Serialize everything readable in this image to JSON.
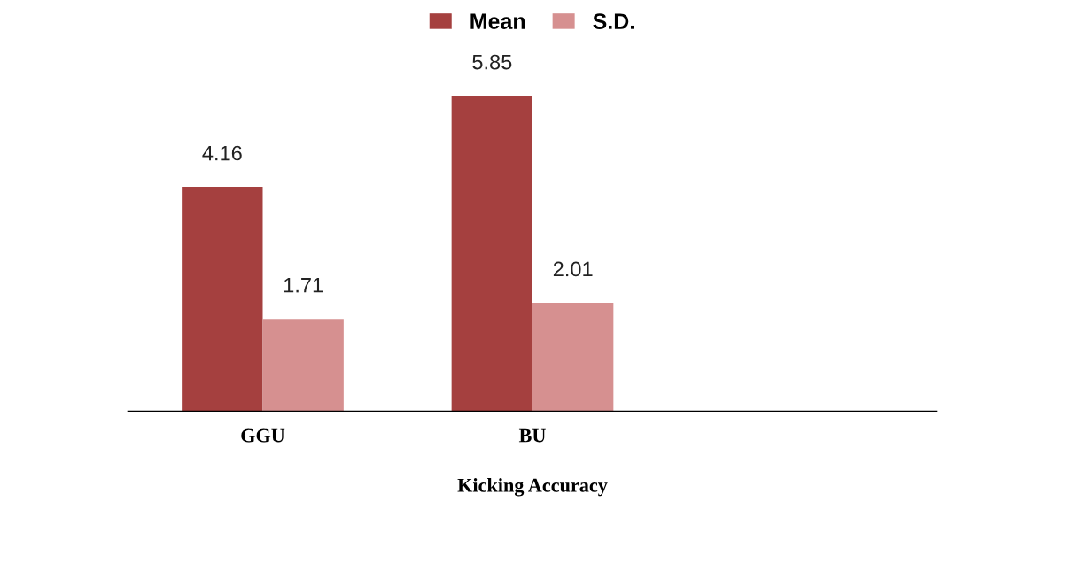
{
  "chart_data": {
    "type": "bar",
    "categories": [
      "GGU",
      "BU",
      null
    ],
    "xlabel": "Kicking Accuracy",
    "series": [
      {
        "name": "Mean",
        "color": "#a5403f",
        "values": [
          4.16,
          5.85,
          null
        ]
      },
      {
        "name": "S.D.",
        "color": "#d69090",
        "values": [
          1.71,
          2.01,
          null
        ]
      }
    ],
    "data_labels": true,
    "legend": "top",
    "grid": false
  }
}
